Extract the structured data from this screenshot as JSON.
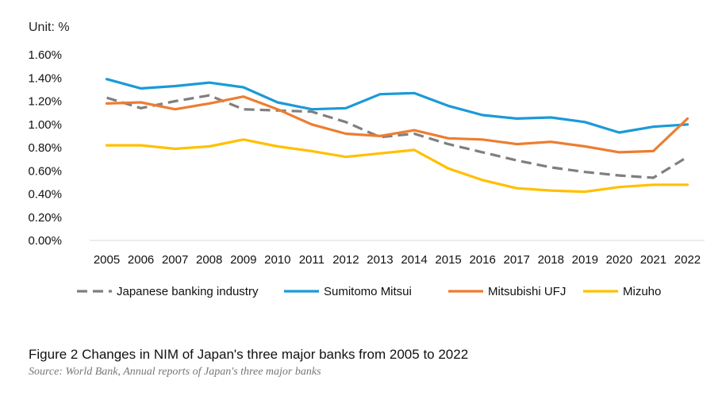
{
  "chart_data": {
    "type": "line",
    "unit_label": "Unit: %",
    "x": [
      "2005",
      "2006",
      "2007",
      "2008",
      "2009",
      "2010",
      "2011",
      "2012",
      "2013",
      "2014",
      "2015",
      "2016",
      "2017",
      "2018",
      "2019",
      "2020",
      "2021",
      "2022"
    ],
    "y_ticks": [
      "0.00%",
      "0.20%",
      "0.40%",
      "0.60%",
      "0.80%",
      "1.00%",
      "1.20%",
      "1.40%",
      "1.60%"
    ],
    "ylim": [
      0,
      1.6
    ],
    "grid": false,
    "legend_position": "bottom",
    "series": [
      {
        "name": "Japanese banking industry",
        "color": "#7f7f7f",
        "dashed": true,
        "values": [
          1.23,
          1.14,
          1.2,
          1.25,
          1.13,
          1.12,
          1.11,
          1.02,
          0.89,
          0.92,
          0.83,
          0.76,
          0.69,
          0.63,
          0.59,
          0.56,
          0.54,
          0.72
        ]
      },
      {
        "name": "Sumitomo Mitsui",
        "color": "#1b9ad6",
        "dashed": false,
        "values": [
          1.39,
          1.31,
          1.33,
          1.36,
          1.32,
          1.19,
          1.13,
          1.14,
          1.26,
          1.27,
          1.16,
          1.08,
          1.05,
          1.06,
          1.02,
          0.93,
          0.98,
          1.0
        ]
      },
      {
        "name": "Mitsubishi UFJ",
        "color": "#ed7d31",
        "dashed": false,
        "values": [
          1.18,
          1.19,
          1.13,
          1.18,
          1.24,
          1.13,
          1.0,
          0.92,
          0.9,
          0.95,
          0.88,
          0.87,
          0.83,
          0.85,
          0.81,
          0.76,
          0.77,
          1.05
        ]
      },
      {
        "name": "Mizuho",
        "color": "#ffc000",
        "dashed": false,
        "values": [
          0.82,
          0.82,
          0.79,
          0.81,
          0.87,
          0.81,
          0.77,
          0.72,
          0.75,
          0.78,
          0.62,
          0.52,
          0.45,
          0.43,
          0.42,
          0.46,
          0.48,
          0.48
        ]
      }
    ]
  },
  "caption": "Figure 2 Changes in NIM of Japan's three major banks from 2005 to 2022",
  "source": "Source: World Bank, Annual reports of Japan's three major banks"
}
